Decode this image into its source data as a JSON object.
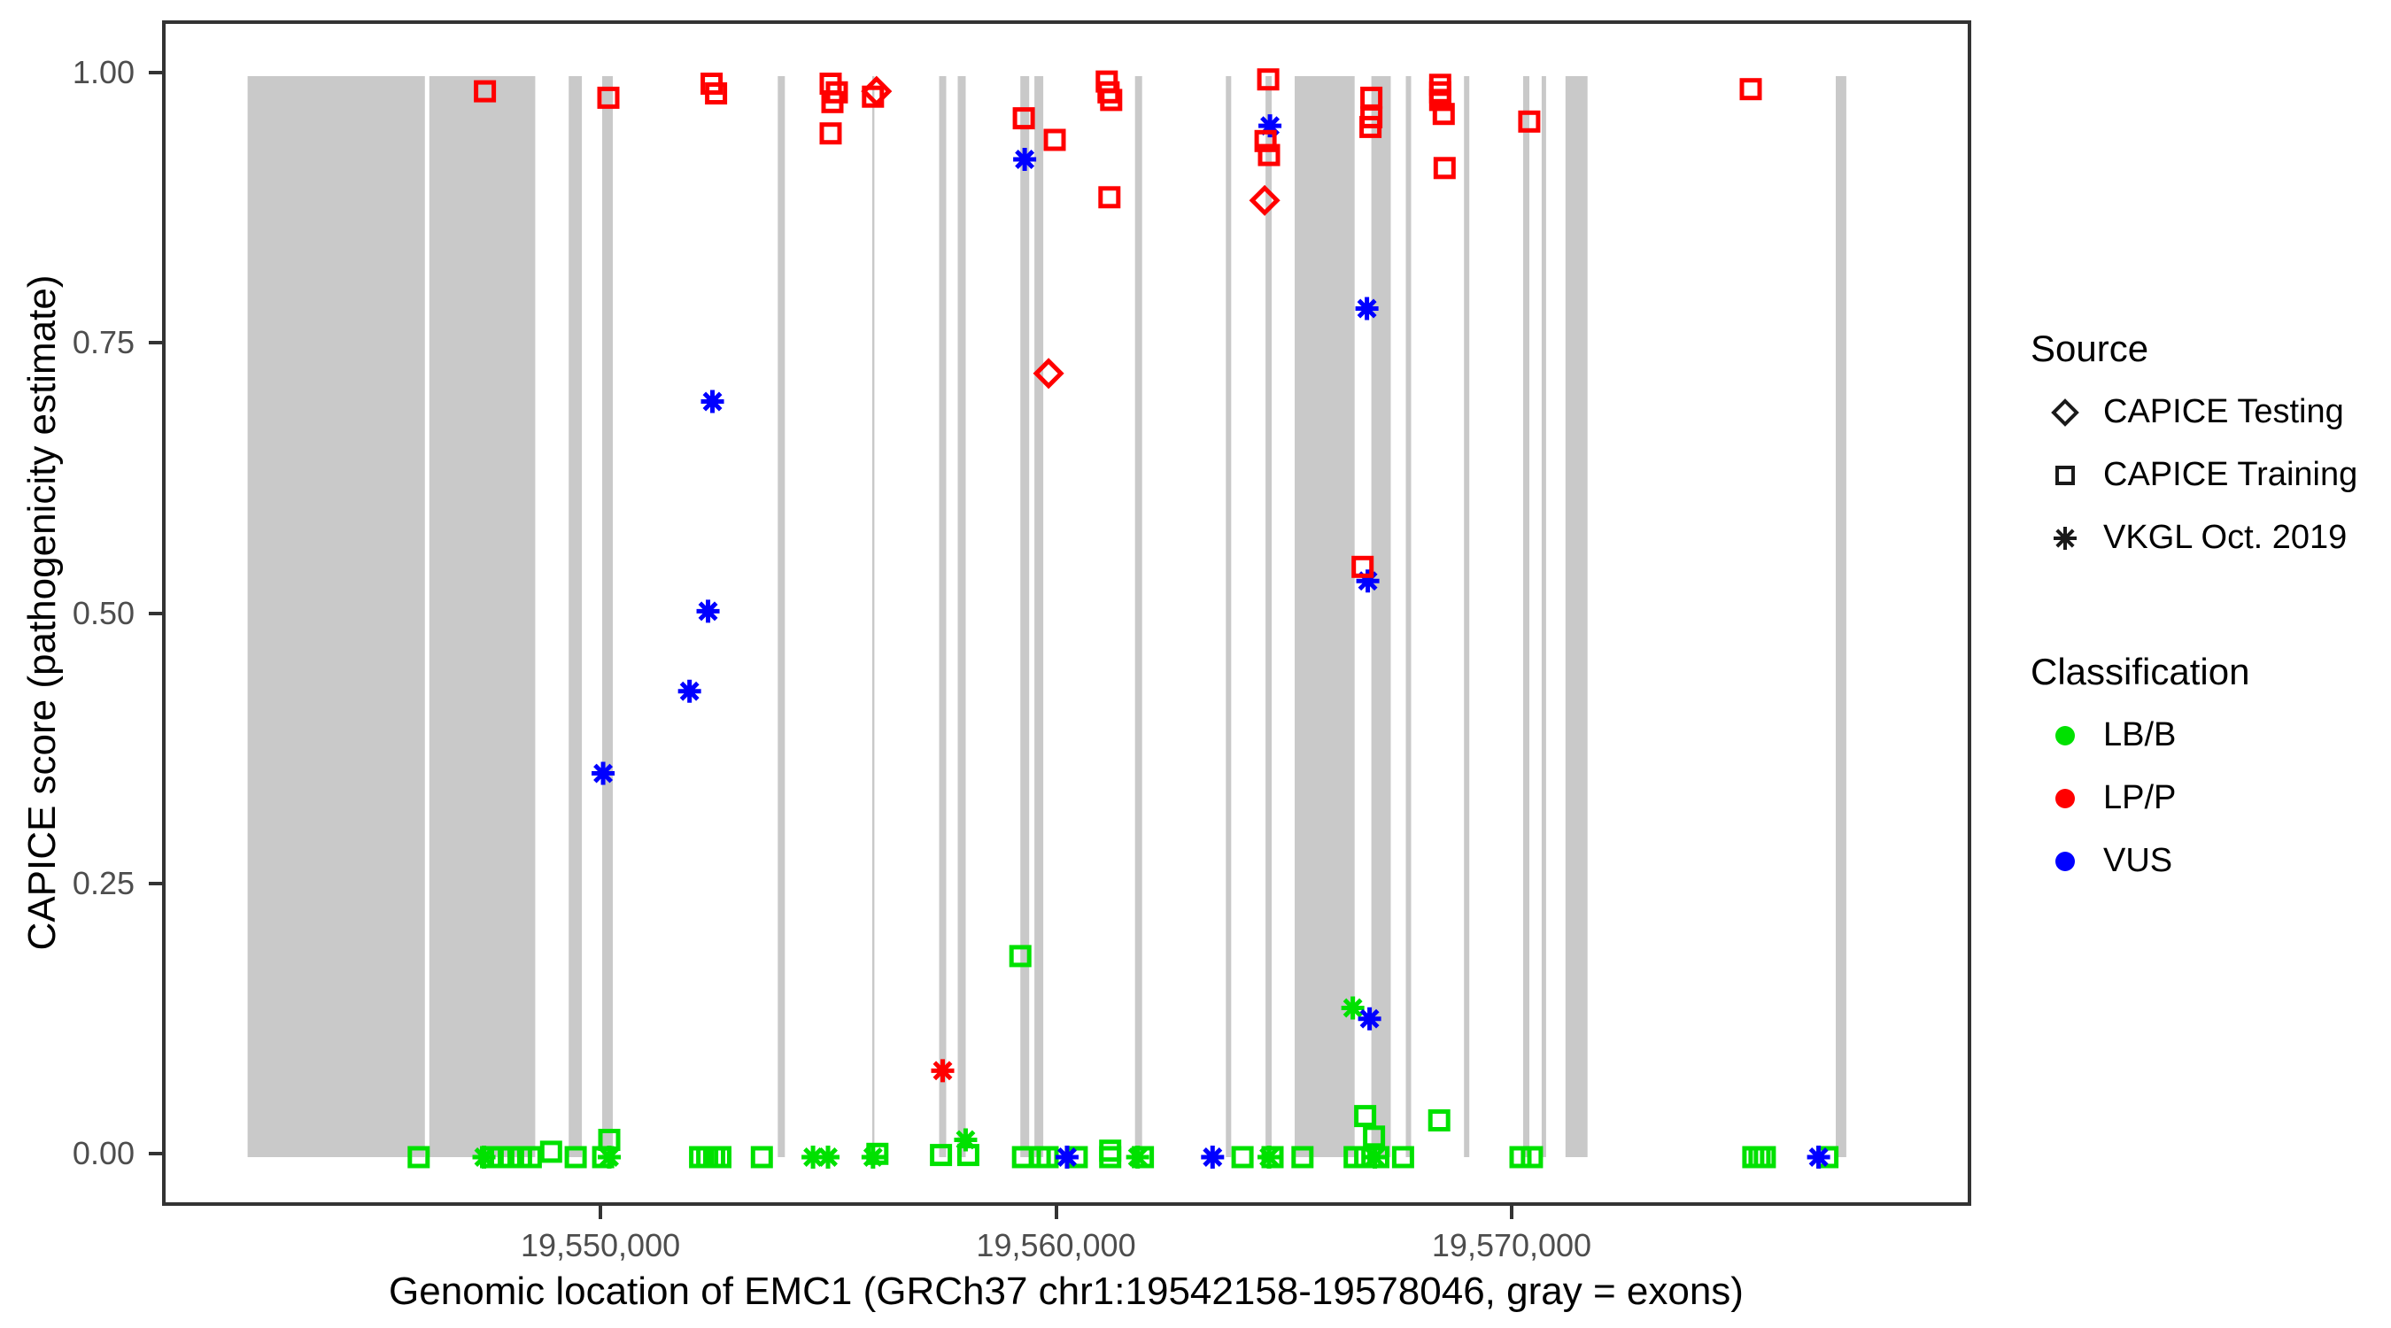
{
  "axes": {
    "x": {
      "title": "Genomic location of EMC1 (GRCh37 chr1:19542158-19578046, gray = exons)",
      "ticks": [
        {
          "pos": 19550000,
          "label": "19,550,000"
        },
        {
          "pos": 19560000,
          "label": "19,560,000"
        },
        {
          "pos": 19570000,
          "label": "19,570,000"
        }
      ]
    },
    "y": {
      "title": "CAPICE score (pathogenicity estimate)",
      "ticks": [
        {
          "value": 0.0,
          "label": "0.00"
        },
        {
          "value": 0.25,
          "label": "0.25"
        },
        {
          "value": 0.5,
          "label": "0.50"
        },
        {
          "value": 0.75,
          "label": "0.75"
        },
        {
          "value": 1.0,
          "label": "1.00"
        }
      ]
    }
  },
  "legend": {
    "source": {
      "title": "Source",
      "items": [
        {
          "label": "CAPICE Testing",
          "symbol": "diamond"
        },
        {
          "label": "CAPICE Training",
          "symbol": "square"
        },
        {
          "label": "VKGL Oct. 2019",
          "symbol": "asterisk"
        }
      ]
    },
    "classification": {
      "title": "Classification",
      "items": [
        {
          "label": "LB/B",
          "color": "#00E100"
        },
        {
          "label": "LP/P",
          "color": "#FF0000"
        },
        {
          "label": "VUS",
          "color": "#0000FF"
        }
      ]
    }
  },
  "colors": {
    "exon_gray": "#C9C9C9",
    "panel_border": "#333333",
    "lbb_green": "#00E100",
    "lpp_red": "#FF0000",
    "vus_blue": "#0000FF"
  },
  "chart_data": {
    "type": "scatter",
    "title": "",
    "xlabel": "Genomic location of EMC1 (GRCh37 chr1:19542158-19578046, gray = exons)",
    "ylabel": "CAPICE score (pathogenicity estimate)",
    "xlim": [
      19540378,
      19579932
    ],
    "ylim": [
      -0.048,
      1.048
    ],
    "grid": false,
    "legend_position": "right",
    "exons": [
      [
        19542178,
        19546070
      ],
      [
        19546166,
        19548490
      ],
      [
        19549226,
        19549516
      ],
      [
        19549961,
        19550194
      ],
      [
        19553814,
        19553969
      ],
      [
        19555886,
        19555925
      ],
      [
        19557357,
        19557512
      ],
      [
        19557764,
        19557938
      ],
      [
        19559138,
        19559332
      ],
      [
        19559448,
        19559642
      ],
      [
        19561655,
        19561810
      ],
      [
        19563649,
        19563765
      ],
      [
        19564521,
        19564656
      ],
      [
        19565160,
        19566476
      ],
      [
        19566844,
        19567270
      ],
      [
        19567599,
        19567715
      ],
      [
        19568877,
        19568993
      ],
      [
        19570174,
        19570310
      ],
      [
        19570581,
        19570678
      ],
      [
        19571103,
        19571587
      ],
      [
        19577035,
        19577267
      ]
    ],
    "series": [
      {
        "source": "CAPICE Training",
        "classification": "LB/B",
        "symbol": "square",
        "color": "#00E100",
        "points": [
          [
            19545934,
            0
          ],
          [
            19547521,
            0
          ],
          [
            19547734,
            0
          ],
          [
            19547947,
            0
          ],
          [
            19548180,
            0
          ],
          [
            19548393,
            0
          ],
          [
            19548838,
            0.005
          ],
          [
            19549380,
            0
          ],
          [
            19549981,
            0
          ],
          [
            19550116,
            0.016
          ],
          [
            19552110,
            0
          ],
          [
            19552265,
            0
          ],
          [
            19552420,
            0
          ],
          [
            19552555,
            0
          ],
          [
            19553465,
            0
          ],
          [
            19556002,
            0.003
          ],
          [
            19557396,
            0.002
          ],
          [
            19557996,
            0.002
          ],
          [
            19559138,
            0.186
          ],
          [
            19559196,
            0
          ],
          [
            19559564,
            0
          ],
          [
            19559738,
            0
          ],
          [
            19560377,
            0
          ],
          [
            19561112,
            0.006
          ],
          [
            19561112,
            0
          ],
          [
            19561829,
            0
          ],
          [
            19564016,
            0
          ],
          [
            19564674,
            0
          ],
          [
            19565332,
            0
          ],
          [
            19566475,
            0
          ],
          [
            19566707,
            0.038
          ],
          [
            19566707,
            0
          ],
          [
            19566901,
            0.019
          ],
          [
            19566997,
            0
          ],
          [
            19567539,
            0
          ],
          [
            19568333,
            0.034
          ],
          [
            19570116,
            0
          ],
          [
            19570368,
            0
          ],
          [
            19575227,
            0
          ],
          [
            19575363,
            0
          ],
          [
            19575479,
            0
          ],
          [
            19576853,
            0
          ]
        ]
      },
      {
        "source": "VKGL Oct. 2019",
        "classification": "LB/B",
        "symbol": "asterisk",
        "color": "#00E100",
        "points": [
          [
            19547366,
            0
          ],
          [
            19550116,
            0
          ],
          [
            19554588,
            0
          ],
          [
            19554917,
            0
          ],
          [
            19555905,
            0
          ],
          [
            19557938,
            0.016
          ],
          [
            19561713,
            0
          ],
          [
            19564597,
            0
          ],
          [
            19566436,
            0.138
          ],
          [
            19566920,
            0
          ]
        ]
      },
      {
        "source": "VKGL Oct. 2019",
        "classification": "VUS",
        "symbol": "asterisk",
        "color": "#0000FF",
        "points": [
          [
            19549981,
            0.355
          ],
          [
            19551878,
            0.431
          ],
          [
            19552284,
            0.505
          ],
          [
            19552381,
            0.699
          ],
          [
            19559234,
            0.923
          ],
          [
            19560164,
            0
          ],
          [
            19563358,
            0
          ],
          [
            19564617,
            0.954
          ],
          [
            19566746,
            0.785
          ],
          [
            19566765,
            0.533
          ],
          [
            19566804,
            0.128
          ],
          [
            19576659,
            0
          ]
        ]
      },
      {
        "source": "CAPICE Training",
        "classification": "LP/P",
        "symbol": "square",
        "color": "#FF0000",
        "points": [
          [
            19547386,
            0.986
          ],
          [
            19550097,
            0.98
          ],
          [
            19552362,
            0.993
          ],
          [
            19552459,
            0.984
          ],
          [
            19554975,
            0.993
          ],
          [
            19555014,
            0.976
          ],
          [
            19555111,
            0.985
          ],
          [
            19554975,
            0.947
          ],
          [
            19555905,
            0.981
          ],
          [
            19559215,
            0.961
          ],
          [
            19559893,
            0.941
          ],
          [
            19561035,
            0.995
          ],
          [
            19561074,
            0.985
          ],
          [
            19561132,
            0.978
          ],
          [
            19561093,
            0.888
          ],
          [
            19564520,
            0.94
          ],
          [
            19564578,
            0.997
          ],
          [
            19564597,
            0.927
          ],
          [
            19566650,
            0.546
          ],
          [
            19566824,
            0.953
          ],
          [
            19566843,
            0.98
          ],
          [
            19566843,
            0.962
          ],
          [
            19568353,
            0.992
          ],
          [
            19568353,
            0.985
          ],
          [
            19568353,
            0.978
          ],
          [
            19568431,
            0.965
          ],
          [
            19568450,
            0.915
          ],
          [
            19570309,
            0.958
          ],
          [
            19575169,
            0.988
          ]
        ]
      },
      {
        "source": "VKGL Oct. 2019",
        "classification": "LP/P",
        "symbol": "asterisk",
        "color": "#FF0000",
        "points": [
          [
            19557434,
            0.08
          ]
        ]
      },
      {
        "source": "CAPICE Testing",
        "classification": "LP/P",
        "symbol": "diamond",
        "color": "#FF0000",
        "points": [
          [
            19555982,
            0.986
          ],
          [
            19559758,
            0.725
          ],
          [
            19564501,
            0.885
          ]
        ]
      }
    ]
  }
}
